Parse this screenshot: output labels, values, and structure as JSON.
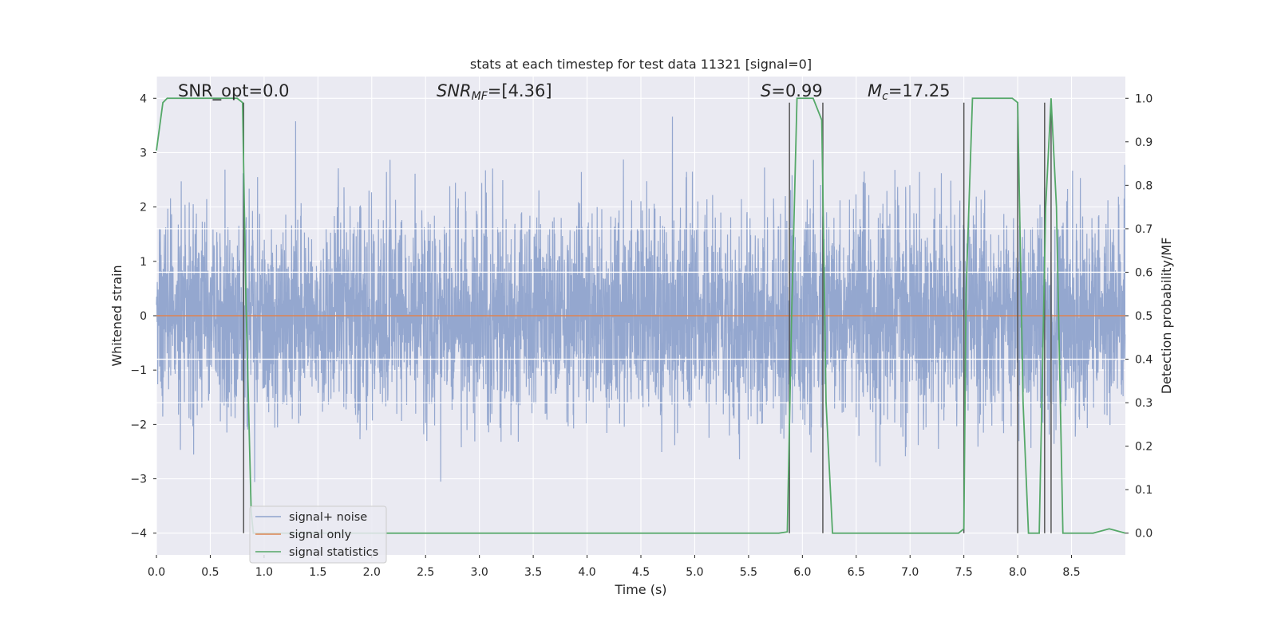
{
  "chart_data": {
    "type": "line",
    "title": "stats at each timestep for test data 11321 [signal=0]",
    "xlabel": "Time (s)",
    "ylabel_left": "Whitened strain",
    "ylabel_right": "Detection probability/MF",
    "xlim": [
      0,
      9.0
    ],
    "ylim_left": [
      -4.4,
      4.4
    ],
    "ylim_right": [
      -0.05,
      1.05
    ],
    "x_ticks": [
      "0.0",
      "0.5",
      "1.0",
      "1.5",
      "2.0",
      "2.5",
      "3.0",
      "3.5",
      "4.0",
      "4.5",
      "5.0",
      "5.5",
      "6.0",
      "6.5",
      "7.0",
      "7.5",
      "8.0",
      "8.5"
    ],
    "y_ticks_left": [
      "4",
      "3",
      "2",
      "1",
      "0",
      "−1",
      "−2",
      "−3",
      "−4"
    ],
    "y_ticks_right": [
      "1.0",
      "0.9",
      "0.8",
      "0.7",
      "0.6",
      "0.5",
      "0.4",
      "0.3",
      "0.2",
      "0.1",
      "0.0"
    ],
    "grid": true,
    "legend_position": "lower-left",
    "annotations": {
      "snr_opt": "SNR_opt=0.0",
      "snr_mf_prefix": "SNR",
      "snr_mf_sub": "MF",
      "snr_mf_value": "=[4.36]",
      "s_prefix": "S",
      "s_value": "=0.99",
      "mc_prefix": "M",
      "mc_sub": "c",
      "mc_value": "=17.25"
    },
    "series": [
      {
        "name": "signal+ noise",
        "color": "#8fa3cc",
        "description_values": "whitened noise, approx. ±1.6 typical, peaks to ±4",
        "sample_rate_hz": 512,
        "duration_s": 9.0
      },
      {
        "name": "signal only",
        "color": "#dd8452",
        "x": [
          0,
          9.0
        ],
        "y": [
          0,
          0
        ]
      },
      {
        "name": "signal statistics",
        "color": "#55a868",
        "x": [
          0.0,
          0.06,
          0.1,
          0.2,
          0.5,
          0.75,
          0.8,
          0.83,
          0.88,
          0.9,
          5.0,
          5.78,
          5.86,
          5.9,
          5.95,
          6.0,
          6.1,
          6.18,
          6.22,
          6.28,
          6.35,
          7.0,
          7.45,
          7.5,
          7.52,
          7.58,
          7.7,
          7.95,
          8.0,
          8.05,
          8.1,
          8.15,
          8.2,
          8.26,
          8.31,
          8.36,
          8.42,
          8.48,
          8.7,
          8.85,
          9.0
        ],
        "y": [
          0.88,
          0.99,
          1.0,
          1.0,
          1.0,
          1.0,
          0.99,
          0.55,
          0.05,
          0.0,
          0.0,
          0.0,
          0.003,
          0.5,
          1.0,
          1.0,
          1.0,
          0.95,
          0.3,
          0.0,
          0.0,
          0.0,
          0.0,
          0.01,
          0.55,
          1.0,
          1.0,
          1.0,
          0.99,
          0.3,
          0.0,
          0.0,
          0.0,
          0.75,
          1.0,
          0.75,
          0.0,
          0.0,
          0.0,
          0.01,
          0.0
        ]
      }
    ],
    "vertical_markers": {
      "color": "#555555",
      "x": [
        0.81,
        5.88,
        6.19,
        7.5,
        8.0,
        8.25,
        8.31
      ],
      "y_top": 0.99,
      "y_bottom": 0.0
    },
    "right_axis_hlines": {
      "color": "#ffffff",
      "values": [
        0.7,
        0.6,
        0.4,
        0.3
      ]
    }
  }
}
